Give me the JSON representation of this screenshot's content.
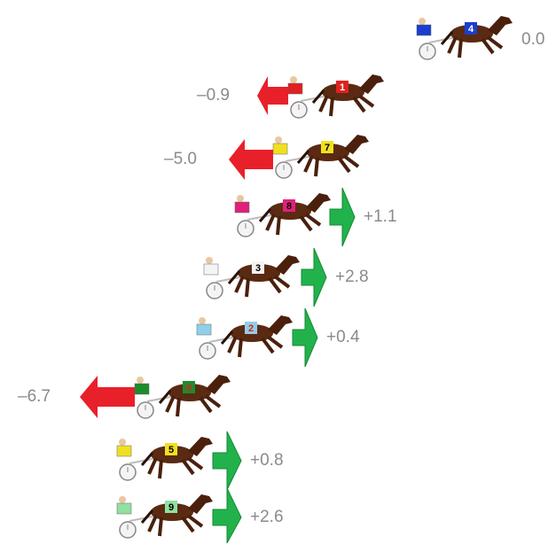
{
  "horses": [
    {
      "number": "4",
      "change": "0.0"
    },
    {
      "number": "1",
      "change": "–0.9"
    },
    {
      "number": "7",
      "change": "–5.0"
    },
    {
      "number": "8",
      "change": "+1.1"
    },
    {
      "number": "3",
      "change": "+2.8"
    },
    {
      "number": "2",
      "change": "+0.4"
    },
    {
      "number": "6",
      "change": "–6.7"
    },
    {
      "number": "5",
      "change": "+0.8"
    },
    {
      "number": "9",
      "change": "+2.6"
    }
  ]
}
